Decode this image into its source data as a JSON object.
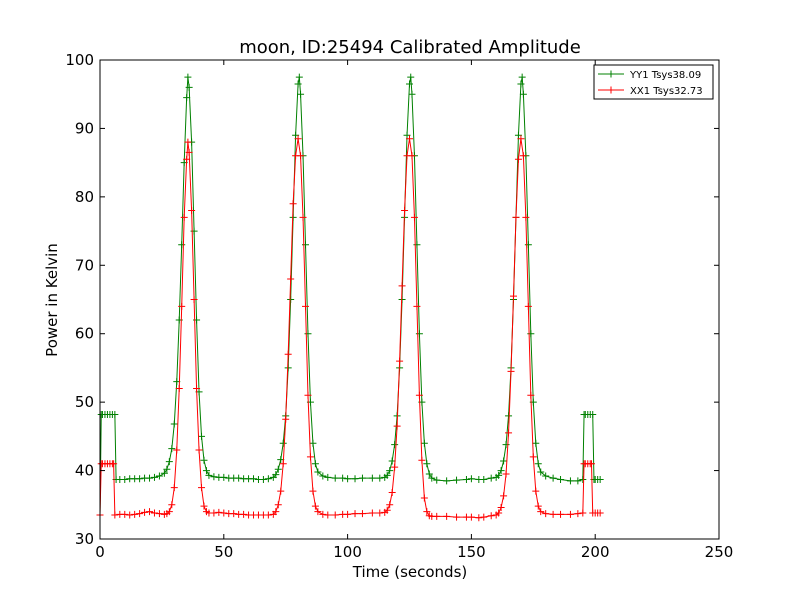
{
  "chart_data": {
    "type": "line",
    "title": "moon, ID:25494 Calibrated Amplitude",
    "xlabel": "Time (seconds)",
    "ylabel": "Power in Kelvin",
    "xlim": [
      0,
      250
    ],
    "ylim": [
      30,
      100
    ],
    "xticks": [
      0,
      50,
      100,
      150,
      200,
      250
    ],
    "yticks": [
      30,
      40,
      50,
      60,
      70,
      80,
      90,
      100
    ],
    "grid": false,
    "legend_position": "top-right",
    "marker": "+",
    "series": [
      {
        "name": "YY1 Tsys38.09",
        "color": "#008000",
        "points": [
          [
            0,
            33.5
          ],
          [
            0.5,
            48.2
          ],
          [
            1,
            48.2
          ],
          [
            2,
            48.2
          ],
          [
            3,
            48.2
          ],
          [
            4,
            48.2
          ],
          [
            5,
            48.2
          ],
          [
            6,
            48.2
          ],
          [
            6.5,
            38.7
          ],
          [
            8,
            38.7
          ],
          [
            10,
            38.7
          ],
          [
            12,
            38.8
          ],
          [
            14,
            38.8
          ],
          [
            16,
            38.8
          ],
          [
            18,
            38.9
          ],
          [
            20,
            38.9
          ],
          [
            22,
            39.0
          ],
          [
            24,
            39.2
          ],
          [
            26,
            39.6
          ],
          [
            27,
            40.2
          ],
          [
            28,
            41.3
          ],
          [
            29,
            43.2
          ],
          [
            30,
            46.8
          ],
          [
            31,
            53.0
          ],
          [
            32,
            62.0
          ],
          [
            33,
            73.0
          ],
          [
            34,
            85.0
          ],
          [
            35,
            94.5
          ],
          [
            35.5,
            97.5
          ],
          [
            36,
            96.0
          ],
          [
            37,
            88.0
          ],
          [
            38,
            75.0
          ],
          [
            39,
            62.0
          ],
          [
            40,
            51.5
          ],
          [
            41,
            45.0
          ],
          [
            42,
            41.5
          ],
          [
            43,
            40.0
          ],
          [
            44,
            39.3
          ],
          [
            46,
            39.1
          ],
          [
            48,
            39.0
          ],
          [
            50,
            39.0
          ],
          [
            52,
            38.9
          ],
          [
            54,
            38.9
          ],
          [
            56,
            38.9
          ],
          [
            58,
            38.8
          ],
          [
            60,
            38.8
          ],
          [
            62,
            38.8
          ],
          [
            64,
            38.7
          ],
          [
            66,
            38.7
          ],
          [
            68,
            38.8
          ],
          [
            70,
            39.0
          ],
          [
            71,
            39.4
          ],
          [
            72,
            40.2
          ],
          [
            73,
            41.6
          ],
          [
            74,
            44.0
          ],
          [
            75,
            48.0
          ],
          [
            76,
            55.0
          ],
          [
            77,
            65.0
          ],
          [
            78,
            77.0
          ],
          [
            79,
            89.0
          ],
          [
            80,
            96.5
          ],
          [
            80.5,
            97.5
          ],
          [
            81,
            95.0
          ],
          [
            82,
            86.0
          ],
          [
            83,
            73.0
          ],
          [
            84,
            60.0
          ],
          [
            85,
            50.0
          ],
          [
            86,
            44.0
          ],
          [
            87,
            41.0
          ],
          [
            88,
            39.8
          ],
          [
            90,
            39.2
          ],
          [
            92,
            39.0
          ],
          [
            95,
            38.9
          ],
          [
            98,
            38.9
          ],
          [
            100,
            38.8
          ],
          [
            103,
            38.8
          ],
          [
            106,
            38.9
          ],
          [
            110,
            38.9
          ],
          [
            113,
            38.9
          ],
          [
            115,
            39.0
          ],
          [
            116,
            39.3
          ],
          [
            117,
            40.0
          ],
          [
            118,
            41.4
          ],
          [
            119,
            43.8
          ],
          [
            120,
            48.0
          ],
          [
            121,
            55.0
          ],
          [
            122,
            65.0
          ],
          [
            123,
            77.0
          ],
          [
            124,
            89.0
          ],
          [
            125,
            96.5
          ],
          [
            125.5,
            97.5
          ],
          [
            126,
            95.0
          ],
          [
            127,
            86.0
          ],
          [
            128,
            73.0
          ],
          [
            129,
            60.0
          ],
          [
            130,
            50.0
          ],
          [
            131,
            44.0
          ],
          [
            132,
            41.0
          ],
          [
            133,
            39.5
          ],
          [
            134,
            38.9
          ],
          [
            136,
            38.6
          ],
          [
            140,
            38.5
          ],
          [
            144,
            38.6
          ],
          [
            148,
            38.7
          ],
          [
            150,
            38.8
          ],
          [
            153,
            38.7
          ],
          [
            155,
            38.7
          ],
          [
            158,
            38.9
          ],
          [
            160,
            39.0
          ],
          [
            161,
            39.3
          ],
          [
            162,
            40.0
          ],
          [
            163,
            41.4
          ],
          [
            164,
            43.8
          ],
          [
            165,
            48.0
          ],
          [
            166,
            55.0
          ],
          [
            167,
            65.0
          ],
          [
            168,
            77.0
          ],
          [
            169,
            89.0
          ],
          [
            170,
            96.5
          ],
          [
            170.5,
            97.5
          ],
          [
            171,
            95.0
          ],
          [
            172,
            86.0
          ],
          [
            173,
            73.0
          ],
          [
            174,
            60.0
          ],
          [
            175,
            50.0
          ],
          [
            176,
            44.0
          ],
          [
            177,
            41.0
          ],
          [
            178,
            39.8
          ],
          [
            180,
            39.2
          ],
          [
            183,
            38.9
          ],
          [
            186,
            38.7
          ],
          [
            190,
            38.5
          ],
          [
            193,
            38.5
          ],
          [
            195,
            38.7
          ],
          [
            195.5,
            48.2
          ],
          [
            196,
            48.2
          ],
          [
            197,
            48.2
          ],
          [
            198,
            48.2
          ],
          [
            199,
            48.2
          ],
          [
            199.5,
            38.7
          ],
          [
            200,
            38.7
          ],
          [
            201,
            38.7
          ],
          [
            202,
            38.7
          ]
        ]
      },
      {
        "name": "XX1 Tsys32.73",
        "color": "#ff0000",
        "points": [
          [
            0,
            33.5
          ],
          [
            0.5,
            41.0
          ],
          [
            1,
            41.0
          ],
          [
            2,
            41.0
          ],
          [
            3,
            41.0
          ],
          [
            4,
            41.0
          ],
          [
            5,
            41.0
          ],
          [
            5.5,
            41.0
          ],
          [
            6,
            33.5
          ],
          [
            8,
            33.6
          ],
          [
            10,
            33.6
          ],
          [
            12,
            33.5
          ],
          [
            14,
            33.6
          ],
          [
            16,
            33.7
          ],
          [
            18,
            33.9
          ],
          [
            20,
            34.0
          ],
          [
            22,
            33.8
          ],
          [
            24,
            33.7
          ],
          [
            26,
            33.6
          ],
          [
            27,
            33.7
          ],
          [
            28,
            34.0
          ],
          [
            29,
            35.0
          ],
          [
            30,
            37.5
          ],
          [
            31,
            43.0
          ],
          [
            32,
            52.0
          ],
          [
            33,
            64.0
          ],
          [
            34,
            77.0
          ],
          [
            35,
            85.5
          ],
          [
            35.5,
            88.0
          ],
          [
            36,
            86.5
          ],
          [
            37,
            78.0
          ],
          [
            38,
            65.0
          ],
          [
            39,
            52.0
          ],
          [
            40,
            43.0
          ],
          [
            41,
            37.5
          ],
          [
            42,
            34.8
          ],
          [
            43,
            34.0
          ],
          [
            44,
            33.8
          ],
          [
            46,
            33.8
          ],
          [
            48,
            33.9
          ],
          [
            50,
            33.8
          ],
          [
            52,
            33.7
          ],
          [
            54,
            33.7
          ],
          [
            56,
            33.6
          ],
          [
            58,
            33.6
          ],
          [
            60,
            33.5
          ],
          [
            62,
            33.5
          ],
          [
            64,
            33.5
          ],
          [
            66,
            33.5
          ],
          [
            68,
            33.5
          ],
          [
            70,
            33.6
          ],
          [
            71,
            34.0
          ],
          [
            72,
            35.0
          ],
          [
            73,
            37.0
          ],
          [
            74,
            41.0
          ],
          [
            75,
            47.5
          ],
          [
            76,
            57.0
          ],
          [
            77,
            68.0
          ],
          [
            78,
            79.0
          ],
          [
            79,
            86.0
          ],
          [
            80,
            88.5
          ],
          [
            81,
            86.0
          ],
          [
            82,
            77.0
          ],
          [
            83,
            64.0
          ],
          [
            84,
            51.0
          ],
          [
            85,
            42.0
          ],
          [
            86,
            37.0
          ],
          [
            87,
            34.8
          ],
          [
            88,
            34.0
          ],
          [
            90,
            33.6
          ],
          [
            92,
            33.5
          ],
          [
            95,
            33.5
          ],
          [
            98,
            33.6
          ],
          [
            100,
            33.6
          ],
          [
            103,
            33.7
          ],
          [
            106,
            33.7
          ],
          [
            110,
            33.8
          ],
          [
            113,
            33.8
          ],
          [
            115,
            33.9
          ],
          [
            116,
            34.2
          ],
          [
            117,
            35.0
          ],
          [
            118,
            36.8
          ],
          [
            119,
            40.5
          ],
          [
            120,
            46.5
          ],
          [
            121,
            56.0
          ],
          [
            122,
            67.0
          ],
          [
            123,
            78.0
          ],
          [
            124,
            86.0
          ],
          [
            125,
            88.5
          ],
          [
            126,
            86.0
          ],
          [
            127,
            77.0
          ],
          [
            128,
            64.0
          ],
          [
            129,
            51.0
          ],
          [
            130,
            41.5
          ],
          [
            131,
            36.0
          ],
          [
            132,
            34.0
          ],
          [
            133,
            33.4
          ],
          [
            134,
            33.3
          ],
          [
            136,
            33.3
          ],
          [
            140,
            33.3
          ],
          [
            144,
            33.2
          ],
          [
            148,
            33.2
          ],
          [
            150,
            33.2
          ],
          [
            153,
            33.1
          ],
          [
            155,
            33.2
          ],
          [
            158,
            33.4
          ],
          [
            160,
            33.5
          ],
          [
            161,
            33.8
          ],
          [
            162,
            34.6
          ],
          [
            163,
            36.3
          ],
          [
            164,
            39.5
          ],
          [
            165,
            45.5
          ],
          [
            166,
            54.5
          ],
          [
            167,
            65.5
          ],
          [
            168,
            77.0
          ],
          [
            169,
            85.5
          ],
          [
            170,
            88.5
          ],
          [
            171,
            86.0
          ],
          [
            172,
            77.0
          ],
          [
            173,
            64.0
          ],
          [
            174,
            51.0
          ],
          [
            175,
            42.0
          ],
          [
            176,
            37.0
          ],
          [
            177,
            34.8
          ],
          [
            178,
            34.0
          ],
          [
            180,
            33.7
          ],
          [
            183,
            33.6
          ],
          [
            186,
            33.6
          ],
          [
            190,
            33.6
          ],
          [
            193,
            33.7
          ],
          [
            195,
            33.8
          ],
          [
            195.5,
            41.0
          ],
          [
            196,
            41.0
          ],
          [
            197,
            41.0
          ],
          [
            198,
            41.0
          ],
          [
            198.5,
            41.0
          ],
          [
            199,
            33.8
          ],
          [
            200,
            33.8
          ],
          [
            201,
            33.8
          ],
          [
            202,
            33.8
          ]
        ]
      }
    ]
  }
}
